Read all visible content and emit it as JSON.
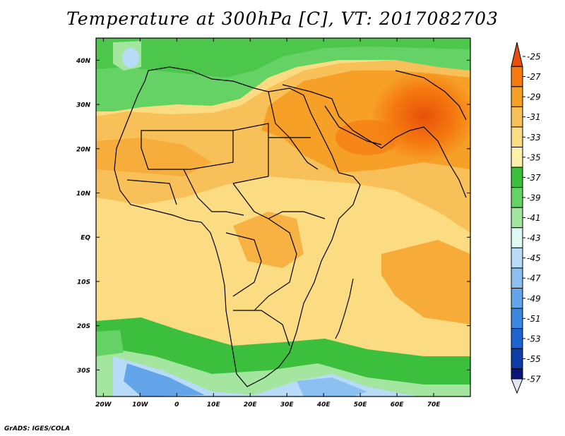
{
  "title": "Temperature at 300hPa [C], VT: 2017082703",
  "footer": "GrADS: IGES/COLA",
  "map": {
    "lat_labels": [
      "40N",
      "30N",
      "20N",
      "10N",
      "EQ",
      "10S",
      "20S",
      "30S"
    ],
    "lon_labels": [
      "20W",
      "10W",
      "0",
      "10E",
      "20E",
      "30E",
      "40E",
      "50E",
      "60E",
      "70E"
    ],
    "lon_range": [
      -22,
      80
    ],
    "lat_range": [
      -36,
      45
    ]
  },
  "colorbar": {
    "labels": [
      "-25",
      "-27",
      "-29",
      "-31",
      "-33",
      "-35",
      "-37",
      "-39",
      "-41",
      "-43",
      "-45",
      "-47",
      "-49",
      "-51",
      "-53",
      "-55",
      "-57"
    ],
    "colors": [
      "#e8500a",
      "#f57a10",
      "#f6a028",
      "#f8c058",
      "#fbdc82",
      "#fdf0a8",
      "#3cbf3c",
      "#64d264",
      "#a4e6a0",
      "#e0f8f4",
      "#b8dcf8",
      "#8cc0f0",
      "#64a4e8",
      "#3c88e0",
      "#1c64d0",
      "#0c3ca8",
      "#0c1478"
    ]
  }
}
